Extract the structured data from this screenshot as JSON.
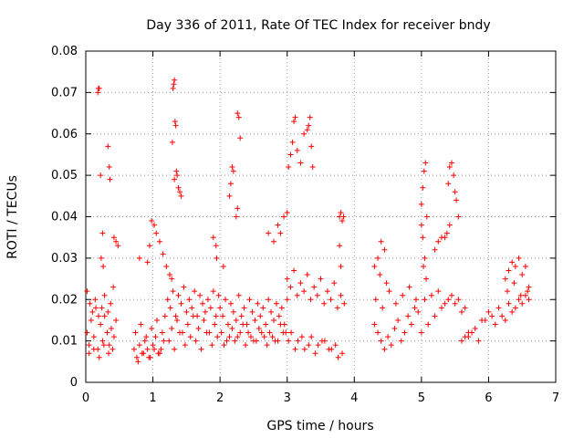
{
  "chart_data": {
    "type": "scatter",
    "title": "Day 336 of 2011, Rate Of TEC Index for receiver bndy",
    "xlabel": "GPS time / hours",
    "ylabel": "ROTI / TECUs",
    "xlim": [
      0,
      7
    ],
    "ylim": [
      0,
      0.08
    ],
    "x_ticks": [
      0,
      1,
      2,
      3,
      4,
      5,
      6,
      7
    ],
    "y_ticks": [
      0,
      0.01,
      0.02,
      0.03,
      0.04,
      0.05,
      0.06,
      0.07,
      0.08
    ],
    "x_tick_labels": [
      "0",
      "1",
      "2",
      "3",
      "4",
      "5",
      "6",
      "7"
    ],
    "y_tick_labels": [
      "0",
      "0.01",
      "0.02",
      "0.03",
      "0.04",
      "0.05",
      "0.06",
      "0.07",
      "0.08"
    ],
    "grid": true,
    "marker": "+",
    "marker_color": "#ff0000",
    "series": [
      {
        "name": "ROTI",
        "x": [
          0.02,
          0.05,
          0.08,
          0.12,
          0.15,
          0.18,
          0.22,
          0.25,
          0.28,
          0.32,
          0.35,
          0.38,
          0.42,
          0.45,
          0.02,
          0.06,
          0.1,
          0.14,
          0.19,
          0.24,
          0.28,
          0.33,
          0.37,
          0.41,
          0.05,
          0.12,
          0.2,
          0.27,
          0.34,
          0.4,
          0.18,
          0.19,
          0.2,
          0.22,
          0.25,
          0.33,
          0.35,
          0.36,
          0.42,
          0.45,
          0.48,
          0.23,
          0.26,
          0.72,
          0.76,
          0.8,
          0.84,
          0.88,
          0.92,
          0.96,
          1.0,
          1.04,
          1.08,
          1.12,
          1.16,
          0.74,
          0.82,
          0.9,
          0.98,
          1.06,
          1.14,
          1.18,
          0.78,
          0.86,
          0.94,
          1.02,
          1.1,
          0.8,
          0.92,
          0.95,
          0.98,
          1.02,
          1.05,
          1.1,
          1.15,
          1.2,
          1.25,
          1.28,
          1.3,
          1.31,
          1.32,
          1.33,
          1.34,
          1.35,
          1.36,
          1.38,
          1.4,
          1.42,
          1.29,
          1.32,
          1.22,
          1.26,
          1.3,
          1.34,
          1.38,
          1.42,
          1.46,
          1.5,
          1.54,
          1.58,
          1.62,
          1.66,
          1.7,
          1.74,
          1.78,
          1.82,
          1.86,
          1.9,
          1.94,
          1.98,
          1.24,
          1.32,
          1.4,
          1.48,
          1.56,
          1.64,
          1.72,
          1.8,
          1.88,
          1.96,
          1.28,
          1.36,
          1.44,
          1.52,
          1.6,
          1.68,
          1.76,
          1.84,
          1.92,
          2.0,
          2.04,
          2.08,
          2.12,
          2.16,
          2.2,
          2.24,
          2.28,
          2.32,
          2.36,
          2.4,
          2.44,
          2.48,
          2.52,
          2.56,
          2.6,
          2.64,
          2.68,
          2.72,
          2.76,
          2.8,
          2.84,
          2.88,
          2.92,
          2.96,
          3.0,
          2.02,
          2.1,
          2.18,
          2.26,
          2.34,
          2.42,
          2.5,
          2.58,
          2.66,
          2.74,
          2.82,
          2.9,
          2.98,
          2.06,
          2.14,
          2.22,
          2.3,
          2.38,
          2.46,
          2.54,
          2.62,
          2.7,
          2.78,
          2.86,
          2.94,
          1.9,
          1.94,
          2.14,
          2.16,
          2.18,
          2.2,
          2.26,
          2.28,
          2.3,
          2.24,
          2.26,
          1.95,
          2.05,
          2.72,
          2.8,
          2.86,
          2.9,
          2.95,
          3.0,
          3.02,
          3.05,
          3.08,
          3.1,
          3.12,
          3.15,
          3.2,
          3.25,
          3.3,
          3.32,
          3.34,
          3.36,
          3.38,
          3.0,
          3.05,
          3.1,
          3.15,
          3.2,
          3.25,
          3.3,
          3.35,
          3.4,
          3.45,
          3.5,
          3.55,
          3.6,
          3.65,
          3.7,
          3.75,
          3.8,
          3.85,
          3.02,
          3.12,
          3.22,
          3.32,
          3.42,
          3.52,
          3.62,
          3.72,
          3.82,
          3.06,
          3.16,
          3.26,
          3.36,
          3.46,
          3.56,
          3.66,
          3.76,
          3.78,
          3.8,
          3.82,
          3.84,
          3.78,
          3.8,
          4.3,
          4.35,
          4.4,
          4.45,
          4.5,
          4.55,
          4.6,
          4.65,
          4.7,
          4.75,
          4.8,
          4.85,
          4.9,
          4.95,
          4.32,
          4.42,
          4.52,
          4.62,
          4.72,
          4.82,
          4.92,
          4.3,
          4.35,
          4.4,
          4.45,
          4.38,
          4.48,
          5.0,
          5.02,
          5.04,
          5.06,
          5.08,
          5.0,
          5.02,
          5.05,
          5.03,
          5.07,
          5.4,
          5.42,
          5.45,
          5.48,
          5.5,
          5.52,
          5.55,
          5.42,
          5.38,
          5.35,
          5.0,
          5.1,
          5.2,
          5.3,
          5.4,
          5.5,
          5.6,
          5.7,
          5.8,
          5.9,
          5.05,
          5.15,
          5.25,
          5.35,
          5.45,
          5.55,
          5.65,
          5.75,
          5.85,
          5.95,
          6.0,
          6.05,
          6.1,
          6.15,
          6.2,
          6.25,
          6.3,
          6.35,
          6.4,
          6.45,
          6.5,
          6.55,
          6.6,
          6.25,
          6.3,
          6.35,
          6.4,
          6.45,
          6.5,
          6.55,
          6.6,
          6.28,
          6.38,
          6.48,
          6.58,
          5.2,
          5.25,
          5.3,
          5.6,
          5.65,
          5.7
        ],
        "y": [
          0.012,
          0.009,
          0.015,
          0.011,
          0.018,
          0.008,
          0.014,
          0.01,
          0.016,
          0.012,
          0.009,
          0.013,
          0.011,
          0.015,
          0.022,
          0.019,
          0.017,
          0.02,
          0.016,
          0.018,
          0.021,
          0.017,
          0.019,
          0.023,
          0.007,
          0.008,
          0.006,
          0.009,
          0.007,
          0.008,
          0.07,
          0.071,
          0.071,
          0.05,
          0.036,
          0.057,
          0.052,
          0.049,
          0.035,
          0.034,
          0.033,
          0.03,
          0.028,
          0.008,
          0.006,
          0.009,
          0.007,
          0.01,
          0.008,
          0.006,
          0.009,
          0.011,
          0.007,
          0.008,
          0.01,
          0.012,
          0.014,
          0.011,
          0.013,
          0.015,
          0.012,
          0.016,
          0.005,
          0.007,
          0.006,
          0.008,
          0.007,
          0.03,
          0.029,
          0.033,
          0.039,
          0.038,
          0.036,
          0.034,
          0.031,
          0.028,
          0.026,
          0.025,
          0.071,
          0.072,
          0.073,
          0.063,
          0.062,
          0.051,
          0.05,
          0.047,
          0.046,
          0.045,
          0.058,
          0.049,
          0.02,
          0.018,
          0.022,
          0.016,
          0.021,
          0.019,
          0.023,
          0.017,
          0.02,
          0.018,
          0.022,
          0.016,
          0.021,
          0.019,
          0.017,
          0.02,
          0.018,
          0.022,
          0.016,
          0.021,
          0.01,
          0.008,
          0.012,
          0.009,
          0.011,
          0.01,
          0.008,
          0.012,
          0.009,
          0.011,
          0.013,
          0.015,
          0.012,
          0.014,
          0.016,
          0.013,
          0.015,
          0.012,
          0.014,
          0.018,
          0.016,
          0.02,
          0.014,
          0.019,
          0.017,
          0.015,
          0.021,
          0.016,
          0.018,
          0.014,
          0.02,
          0.017,
          0.015,
          0.019,
          0.016,
          0.018,
          0.014,
          0.02,
          0.017,
          0.015,
          0.019,
          0.016,
          0.018,
          0.014,
          0.02,
          0.012,
          0.01,
          0.013,
          0.011,
          0.014,
          0.012,
          0.01,
          0.013,
          0.011,
          0.012,
          0.01,
          0.014,
          0.012,
          0.009,
          0.011,
          0.01,
          0.012,
          0.009,
          0.011,
          0.01,
          0.012,
          0.009,
          0.011,
          0.01,
          0.012,
          0.035,
          0.033,
          0.045,
          0.048,
          0.052,
          0.051,
          0.065,
          0.064,
          0.059,
          0.04,
          0.042,
          0.03,
          0.028,
          0.036,
          0.034,
          0.038,
          0.036,
          0.04,
          0.041,
          0.052,
          0.055,
          0.058,
          0.063,
          0.064,
          0.056,
          0.053,
          0.06,
          0.061,
          0.062,
          0.064,
          0.057,
          0.052,
          0.025,
          0.023,
          0.027,
          0.021,
          0.024,
          0.022,
          0.026,
          0.02,
          0.023,
          0.021,
          0.025,
          0.019,
          0.022,
          0.02,
          0.024,
          0.018,
          0.021,
          0.019,
          0.01,
          0.008,
          0.011,
          0.009,
          0.007,
          0.01,
          0.008,
          0.009,
          0.007,
          0.012,
          0.01,
          0.008,
          0.011,
          0.009,
          0.01,
          0.008,
          0.006,
          0.04,
          0.041,
          0.039,
          0.04,
          0.033,
          0.028,
          0.014,
          0.012,
          0.01,
          0.008,
          0.011,
          0.009,
          0.013,
          0.015,
          0.01,
          0.012,
          0.016,
          0.014,
          0.018,
          0.017,
          0.02,
          0.018,
          0.022,
          0.019,
          0.021,
          0.023,
          0.02,
          0.028,
          0.03,
          0.034,
          0.032,
          0.026,
          0.024,
          0.043,
          0.047,
          0.051,
          0.053,
          0.04,
          0.038,
          0.035,
          0.03,
          0.028,
          0.025,
          0.048,
          0.052,
          0.053,
          0.05,
          0.046,
          0.044,
          0.04,
          0.038,
          0.036,
          0.035,
          0.012,
          0.014,
          0.016,
          0.018,
          0.02,
          0.019,
          0.017,
          0.011,
          0.013,
          0.015,
          0.02,
          0.021,
          0.022,
          0.019,
          0.021,
          0.02,
          0.018,
          0.012,
          0.01,
          0.015,
          0.017,
          0.016,
          0.014,
          0.018,
          0.016,
          0.015,
          0.019,
          0.017,
          0.018,
          0.02,
          0.019,
          0.021,
          0.02,
          0.025,
          0.027,
          0.029,
          0.028,
          0.03,
          0.026,
          0.028,
          0.023,
          0.022,
          0.024,
          0.021,
          0.022,
          0.032,
          0.034,
          0.035,
          0.01,
          0.011,
          0.012
        ]
      }
    ]
  }
}
